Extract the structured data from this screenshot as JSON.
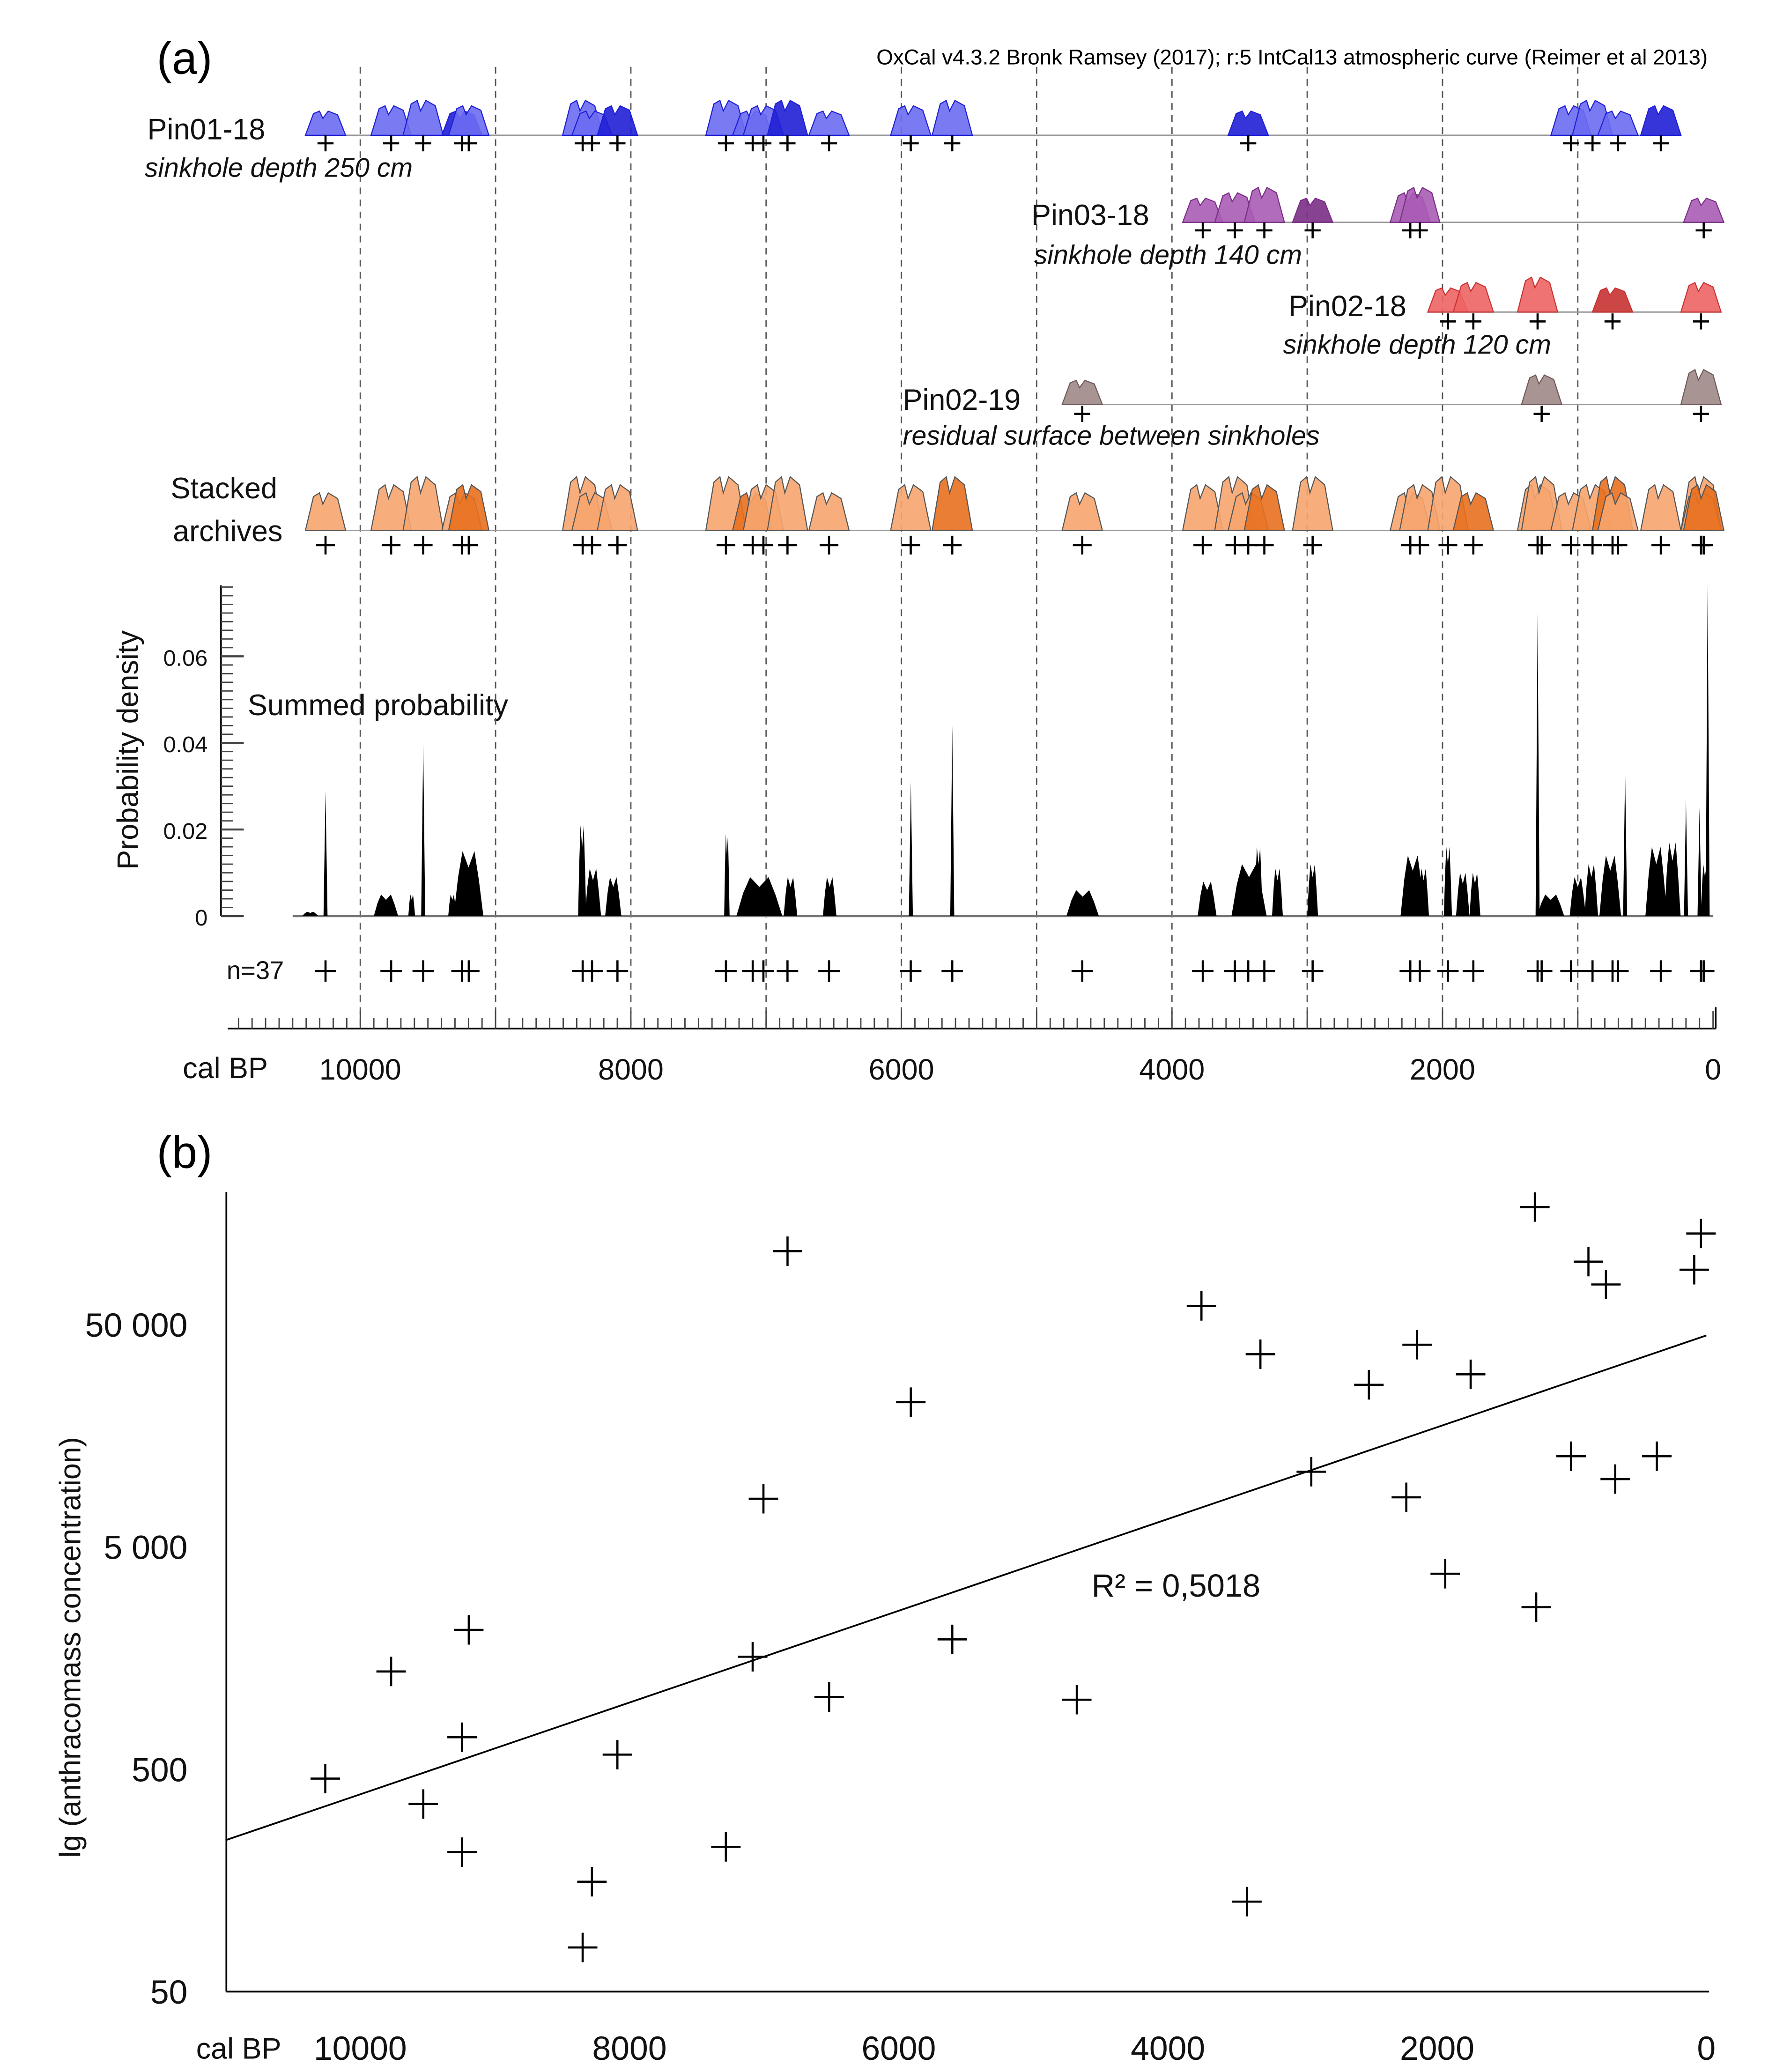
{
  "chart_data": [
    {
      "type": "area",
      "panel_label": "(a)",
      "header": "OxCal v4.3.2 Bronk Ramsey (2017); r:5 IntCal13 atmospheric curve (Reimer et al 2013)",
      "xlabel": "cal BP",
      "xlim": [
        10900,
        0
      ],
      "x_ticks": [
        "10000",
        "8000",
        "6000",
        "4000",
        "2000",
        "0"
      ],
      "x_tick_values": [
        10000,
        8000,
        6000,
        4000,
        2000,
        0
      ],
      "ylabel": "Probability density",
      "ylim": [
        0,
        0.077
      ],
      "y_ticks": [
        "0.06",
        "0.04",
        "0.02",
        "0"
      ],
      "y_tick_values": [
        0.06,
        0.04,
        0.02,
        0
      ],
      "grid": "dashed vertical lines every 1000 cal BP",
      "archives": [
        {
          "name": "Pin01-18",
          "description": "sinkhole depth 250 cm",
          "color": "#6b6bf2",
          "dark": "#1f1fd6",
          "dates": [
            10257,
            9772,
            9535,
            9248,
            9198,
            8356,
            8287,
            8099,
            7297,
            7099,
            7020,
            6842,
            6535,
            5931,
            5624,
            3436,
            1050,
            891,
            703,
            386
          ]
        },
        {
          "name": "Pin03-18",
          "description": "sinkhole depth 140 cm",
          "color": "#a85cb4",
          "dark": "#7a2e86",
          "dates": [
            3772,
            3535,
            3317,
            2960,
            2238,
            2168,
            69
          ]
        },
        {
          "name": "Pin02-18",
          "description": "sinkhole depth 120 cm",
          "color": "#ee6464",
          "dark": "#c83232",
          "dates": [
            1960,
            1772,
            1297,
            743,
            89
          ]
        },
        {
          "name": "Pin02-19",
          "description": "residual surface between sinkholes",
          "color": "#a08888",
          "dark": "#705858",
          "dates": [
            4663,
            1267,
            89
          ]
        }
      ],
      "stacked": {
        "name": "Stacked archives",
        "color": "#f7a56e",
        "dark": "#e8701e"
      },
      "summed": {
        "label": "Summed probability",
        "n_label": "n=37",
        "peaks": [
          [
            10370,
            0.001,
            60
          ],
          [
            10257,
            0.029,
            12
          ],
          [
            9810,
            0.005,
            90
          ],
          [
            9535,
            0.04,
            8
          ],
          [
            9620,
            0.005,
            25
          ],
          [
            9200,
            0.015,
            110
          ],
          [
            9320,
            0.005,
            30
          ],
          [
            8360,
            0.021,
            30
          ],
          [
            8280,
            0.011,
            60
          ],
          [
            8130,
            0.009,
            60
          ],
          [
            7290,
            0.019,
            20
          ],
          [
            7050,
            0.009,
            170
          ],
          [
            6820,
            0.009,
            50
          ],
          [
            6530,
            0.009,
            50
          ],
          [
            5930,
            0.031,
            8
          ],
          [
            5624,
            0.044,
            6
          ],
          [
            4660,
            0.006,
            120
          ],
          [
            3740,
            0.008,
            70
          ],
          [
            3430,
            0.012,
            130
          ],
          [
            3360,
            0.016,
            30
          ],
          [
            3220,
            0.011,
            40
          ],
          [
            2960,
            0.012,
            40
          ],
          [
            2220,
            0.014,
            90
          ],
          [
            2140,
            0.011,
            40
          ],
          [
            1960,
            0.016,
            30
          ],
          [
            1850,
            0.01,
            50
          ],
          [
            1760,
            0.01,
            40
          ],
          [
            1297,
            0.07,
            8
          ],
          [
            1200,
            0.005,
            100
          ],
          [
            1000,
            0.009,
            60
          ],
          [
            900,
            0.012,
            50
          ],
          [
            760,
            0.014,
            80
          ],
          [
            650,
            0.034,
            8
          ],
          [
            420,
            0.016,
            80
          ],
          [
            300,
            0.017,
            60
          ],
          [
            200,
            0.027,
            8
          ],
          [
            100,
            0.025,
            10
          ],
          [
            40,
            0.077,
            6
          ],
          [
            60,
            0.012,
            30
          ]
        ]
      }
    },
    {
      "type": "scatter",
      "panel_label": "(b)",
      "xlabel": "cal BP",
      "ylabel": "lg (anthracomass concentration)",
      "xlim": [
        11000,
        0
      ],
      "ylim": [
        50,
        250000
      ],
      "yscale": "log",
      "x_ticks": [
        "10000",
        "8000",
        "6000",
        "4000",
        "2000",
        "0"
      ],
      "x_tick_values": [
        10000,
        8000,
        6000,
        4000,
        2000,
        0
      ],
      "y_ticks": [
        "50 000",
        "5 000",
        "500",
        "50"
      ],
      "y_tick_values": [
        50000,
        5000,
        500,
        50
      ],
      "points": [
        [
          10260,
          454
        ],
        [
          9771,
          1377
        ],
        [
          9532,
          349
        ],
        [
          9244,
          697
        ],
        [
          9244,
          212
        ],
        [
          9194,
          2118
        ],
        [
          8348,
          79
        ],
        [
          8279,
          156
        ],
        [
          8090,
          582
        ],
        [
          7284,
          224
        ],
        [
          7085,
          1604
        ],
        [
          7005,
          8240
        ],
        [
          6826,
          107000
        ],
        [
          6517,
          1057
        ],
        [
          5910,
          22400
        ],
        [
          5602,
          1920
        ],
        [
          4677,
          1028
        ],
        [
          3751,
          60700
        ],
        [
          3413,
          127
        ],
        [
          3313,
          36800
        ],
        [
          2935,
          10900
        ],
        [
          2507,
          26800
        ],
        [
          2229,
          8360
        ],
        [
          2149,
          40600
        ],
        [
          1940,
          3790
        ],
        [
          1751,
          29900
        ],
        [
          1274,
          169000
        ],
        [
          1264,
          2680
        ],
        [
          1005,
          12800
        ],
        [
          876,
          96000
        ],
        [
          746,
          75800
        ],
        [
          677,
          10100
        ],
        [
          368,
          12800
        ],
        [
          90,
          88300
        ],
        [
          40,
          128500
        ]
      ],
      "trendline": {
        "x": [
          11000,
          0
        ],
        "y": [
          240,
          44700
        ]
      },
      "annotation": "R² = 0,5018"
    }
  ]
}
